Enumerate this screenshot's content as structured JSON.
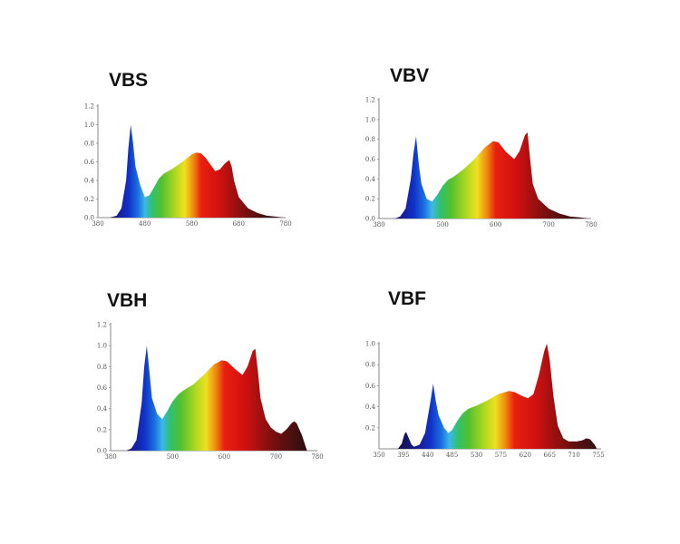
{
  "chart_data": [
    {
      "type": "area",
      "title": "VBS",
      "xlabel": "",
      "ylabel": "",
      "xlim": [
        380,
        780
      ],
      "ylim": [
        0,
        1.2
      ],
      "xticks": [
        380,
        480,
        580,
        680,
        780
      ],
      "yticks": [
        "0.0",
        "0.2",
        "0.4",
        "0.6",
        "0.8",
        "1.0",
        "1.2"
      ],
      "x": [
        390,
        405,
        420,
        430,
        440,
        445,
        450,
        455,
        460,
        470,
        480,
        490,
        500,
        510,
        520,
        540,
        560,
        580,
        590,
        600,
        610,
        620,
        630,
        640,
        650,
        660,
        665,
        670,
        680,
        700,
        720,
        740,
        760,
        775
      ],
      "y": [
        0,
        0,
        0.02,
        0.1,
        0.4,
        0.75,
        1.0,
        0.8,
        0.55,
        0.35,
        0.22,
        0.24,
        0.33,
        0.42,
        0.47,
        0.53,
        0.6,
        0.68,
        0.7,
        0.69,
        0.64,
        0.57,
        0.5,
        0.52,
        0.58,
        0.62,
        0.55,
        0.4,
        0.22,
        0.1,
        0.05,
        0.02,
        0.01,
        0
      ]
    },
    {
      "type": "area",
      "title": "VBV",
      "xlabel": "",
      "ylabel": "",
      "xlim": [
        380,
        780
      ],
      "ylim": [
        0,
        1.2
      ],
      "xticks": [
        380,
        500,
        600,
        700,
        780
      ],
      "yticks": [
        "0.0",
        "0.2",
        "0.4",
        "0.6",
        "0.8",
        "1.0",
        "1.2"
      ],
      "x": [
        390,
        410,
        420,
        430,
        440,
        445,
        450,
        455,
        460,
        470,
        480,
        490,
        500,
        510,
        520,
        540,
        560,
        580,
        595,
        605,
        620,
        635,
        645,
        655,
        660,
        665,
        670,
        680,
        700,
        720,
        740,
        760,
        775
      ],
      "y": [
        0,
        0,
        0.02,
        0.1,
        0.4,
        0.65,
        0.83,
        0.55,
        0.35,
        0.2,
        0.17,
        0.24,
        0.33,
        0.39,
        0.42,
        0.5,
        0.6,
        0.72,
        0.78,
        0.77,
        0.67,
        0.6,
        0.68,
        0.84,
        0.87,
        0.6,
        0.35,
        0.2,
        0.1,
        0.05,
        0.02,
        0.01,
        0
      ]
    },
    {
      "type": "area",
      "title": "VBH",
      "xlabel": "",
      "ylabel": "",
      "xlim": [
        380,
        780
      ],
      "ylim": [
        0,
        1.2
      ],
      "xticks": [
        380,
        500,
        600,
        700,
        780
      ],
      "yticks": [
        "0.0",
        "0.2",
        "0.4",
        "0.6",
        "0.8",
        "1.0",
        "1.2"
      ],
      "x": [
        390,
        410,
        420,
        430,
        440,
        445,
        450,
        455,
        460,
        470,
        480,
        490,
        500,
        510,
        520,
        540,
        560,
        580,
        595,
        605,
        620,
        635,
        645,
        655,
        660,
        665,
        670,
        680,
        690,
        700,
        710,
        720,
        730,
        735,
        740,
        750,
        760
      ],
      "y": [
        0,
        0,
        0.02,
        0.1,
        0.45,
        0.8,
        1.0,
        0.75,
        0.5,
        0.35,
        0.3,
        0.38,
        0.47,
        0.53,
        0.57,
        0.63,
        0.72,
        0.82,
        0.86,
        0.85,
        0.78,
        0.72,
        0.8,
        0.95,
        0.97,
        0.75,
        0.5,
        0.3,
        0.22,
        0.18,
        0.16,
        0.2,
        0.26,
        0.28,
        0.26,
        0.15,
        0
      ]
    },
    {
      "type": "area",
      "title": "VBF",
      "xlabel": "",
      "ylabel": "",
      "xlim": [
        350,
        760
      ],
      "ylim": [
        0,
        1.0
      ],
      "xticks": [
        350,
        395,
        440,
        485,
        530,
        575,
        620,
        665,
        710,
        755
      ],
      "yticks": [
        "0.2",
        "0.4",
        "0.6",
        "0.8",
        "1.0"
      ],
      "x": [
        385,
        392,
        397,
        400,
        405,
        410,
        415,
        425,
        435,
        445,
        450,
        455,
        460,
        470,
        478,
        485,
        495,
        505,
        515,
        530,
        550,
        570,
        590,
        600,
        615,
        625,
        635,
        645,
        655,
        660,
        665,
        672,
        680,
        690,
        700,
        715,
        725,
        733,
        740,
        748,
        752
      ],
      "y": [
        0,
        0.05,
        0.14,
        0.16,
        0.1,
        0.04,
        0.02,
        0.04,
        0.15,
        0.45,
        0.62,
        0.45,
        0.32,
        0.2,
        0.15,
        0.18,
        0.27,
        0.34,
        0.38,
        0.41,
        0.46,
        0.52,
        0.55,
        0.54,
        0.5,
        0.48,
        0.52,
        0.7,
        0.93,
        1.0,
        0.85,
        0.5,
        0.22,
        0.1,
        0.07,
        0.07,
        0.08,
        0.1,
        0.09,
        0.04,
        0
      ]
    }
  ]
}
